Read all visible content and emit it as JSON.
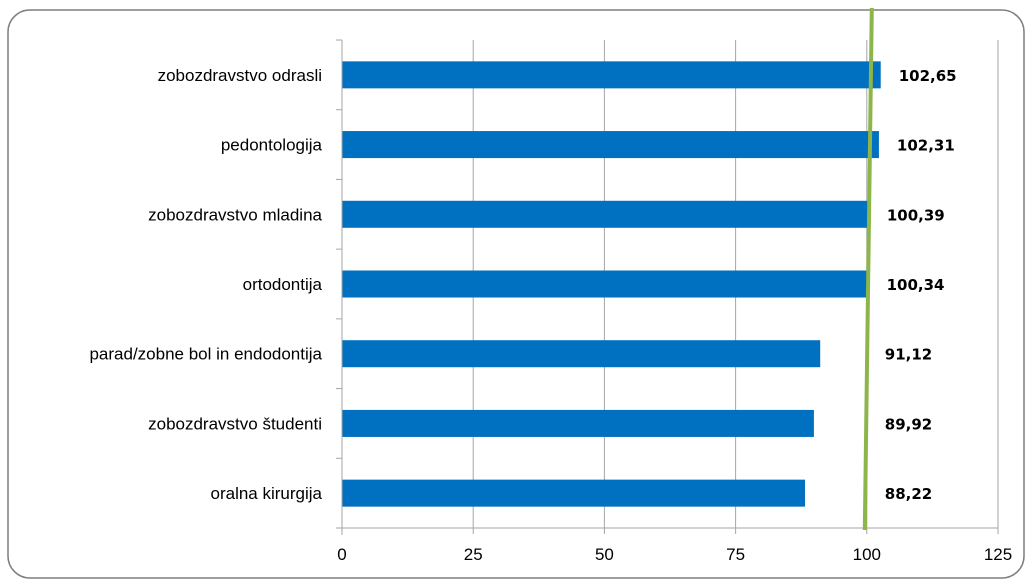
{
  "chart_data": {
    "type": "bar",
    "orientation": "horizontal",
    "categories": [
      "zobozdravstvo odrasli",
      "pedontologija",
      "zobozdravstvo mladina",
      "ortodontija",
      "parad/zobne bol in endodontija",
      "zobozdravstvo študenti",
      "oralna kirurgija"
    ],
    "values": [
      102.65,
      102.31,
      100.39,
      100.34,
      91.12,
      89.92,
      88.22
    ],
    "data_labels": [
      "102,65",
      "102,31",
      "100,39",
      "100,34",
      "91,12",
      "89,92",
      "88,22"
    ],
    "xlim": [
      0,
      125
    ],
    "x_ticks": [
      0,
      25,
      50,
      75,
      100,
      125
    ],
    "x_tick_labels": [
      "0",
      "25",
      "50",
      "75",
      "100",
      "125"
    ],
    "reference_line": {
      "value": 100,
      "color": "#8cb54a"
    },
    "grid": "vertical",
    "legend": "none",
    "title": "",
    "xlabel": "",
    "ylabel": "",
    "colors": {
      "bar": "#0070c0",
      "grid": "#a6a6a6",
      "frame": "#7f7f7f"
    }
  }
}
